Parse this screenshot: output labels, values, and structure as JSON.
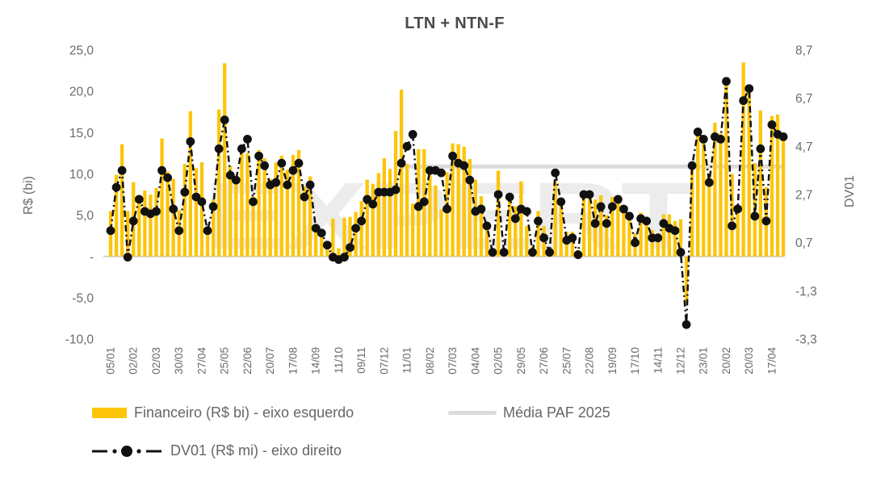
{
  "title": "LTN + NTN-F",
  "watermark": {
    "text": "EXPERT",
    "color": "#ECECEC"
  },
  "left_axis": {
    "label": "R$ (bi)",
    "ticks": [
      "25,0",
      "20,0",
      "15,0",
      "10,0",
      "5,0",
      "-",
      "-5,0",
      "-10,0"
    ],
    "tick_values": [
      25,
      20,
      15,
      10,
      5,
      0,
      -5,
      -10
    ]
  },
  "right_axis": {
    "label": "DV01",
    "ticks": [
      "8,7",
      "6,7",
      "4,7",
      "2,7",
      "0,7",
      "-1,3",
      "-3,3"
    ],
    "tick_values": [
      8.7,
      6.7,
      4.7,
      2.7,
      0.7,
      -1.3,
      -3.3
    ]
  },
  "legend": {
    "financeiro": "Financeiro (R$ bi) - eixo esquerdo",
    "media": "Média PAF 2025",
    "dv01": "DV01 (R$ mi) - eixo direito"
  },
  "chart_data": {
    "type": "bar",
    "grid": false,
    "left_ylim": [
      -10,
      25
    ],
    "right_ylim": [
      -3.3,
      8.7
    ],
    "x_tick_every": 4,
    "x_tick_labels": [
      "05/01",
      "02/02",
      "02/03",
      "30/03",
      "27/04",
      "25/05",
      "22/06",
      "20/07",
      "17/08",
      "14/09",
      "11/10",
      "09/11",
      "07/12",
      "11/01",
      "08/02",
      "07/03",
      "04/04",
      "02/05",
      "29/05",
      "27/06",
      "25/07",
      "22/08",
      "19/09",
      "17/10",
      "14/11",
      "12/12",
      "23/01",
      "20/02",
      "20/03",
      "17/04"
    ],
    "series": [
      {
        "name": "Financeiro (R$ bi) - eixo esquerdo",
        "type": "bar",
        "axis": "left",
        "color": "#FCC509",
        "values": [
          5.5,
          9.9,
          13.6,
          5.5,
          9.0,
          6.5,
          8.0,
          7.5,
          8.3,
          14.3,
          10.3,
          9.4,
          5.6,
          11.2,
          17.6,
          10.7,
          11.4,
          3.2,
          6.9,
          17.8,
          23.4,
          11.0,
          9.3,
          13.1,
          12.5,
          7.3,
          12.9,
          11.9,
          9.4,
          11.4,
          12.2,
          10.5,
          12.3,
          12.9,
          8.5,
          9.7,
          3.2,
          2.4,
          1.0,
          4.6,
          1.0,
          4.7,
          4.8,
          5.4,
          6.7,
          9.3,
          8.8,
          10.1,
          11.9,
          10.6,
          15.2,
          20.2,
          11.2,
          6.4,
          13.0,
          13.0,
          10.4,
          8.6,
          5.7,
          10.2,
          13.7,
          13.6,
          13.3,
          11.8,
          9.3,
          7.3,
          3.7,
          0.9,
          10.4,
          0.9,
          7.6,
          6.1,
          9.1,
          3.7,
          1.2,
          5.5,
          3.7,
          1.1,
          9.1,
          6.8,
          3.0,
          3.0,
          0.8,
          7.8,
          7.6,
          6.9,
          7.4,
          5.0,
          7.2,
          6.8,
          5.8,
          5.4,
          2.8,
          5.3,
          4.1,
          3.2,
          2.8,
          5.1,
          5.1,
          4.3,
          4.5,
          -5.8,
          11.0,
          15.5,
          14.4,
          10.0,
          16.2,
          14.9,
          21.7,
          10.0,
          5.8,
          23.5,
          20.3,
          11.3,
          17.7,
          8.4,
          17.0,
          17.2,
          14.9
        ]
      },
      {
        "name": "DV01 (R$ mi) - eixo direito",
        "type": "line",
        "axis": "right",
        "color": "#111111",
        "values": [
          1.2,
          3.0,
          3.7,
          0.1,
          1.6,
          2.5,
          2.0,
          1.9,
          2.0,
          3.7,
          3.4,
          2.1,
          1.2,
          2.8,
          4.9,
          2.6,
          2.4,
          1.2,
          2.2,
          4.6,
          5.8,
          3.5,
          3.3,
          4.6,
          5.0,
          2.4,
          4.3,
          3.9,
          3.1,
          3.2,
          4.0,
          3.1,
          3.7,
          4.0,
          2.6,
          3.1,
          1.3,
          1.1,
          0.6,
          0.1,
          0.0,
          0.1,
          0.5,
          1.3,
          1.6,
          2.5,
          2.3,
          2.8,
          2.8,
          2.8,
          2.9,
          4.0,
          4.7,
          5.2,
          2.2,
          2.4,
          3.7,
          3.7,
          3.6,
          2.1,
          4.3,
          4.0,
          3.9,
          3.3,
          2.0,
          2.1,
          1.4,
          0.3,
          2.7,
          0.3,
          2.6,
          1.7,
          2.1,
          2.0,
          0.3,
          1.6,
          0.9,
          0.3,
          3.6,
          2.4,
          0.8,
          0.9,
          0.2,
          2.7,
          2.7,
          1.5,
          2.2,
          1.5,
          2.2,
          2.5,
          2.1,
          1.8,
          0.7,
          1.7,
          1.6,
          0.9,
          0.9,
          1.5,
          1.3,
          1.2,
          0.3,
          -2.7,
          3.9,
          5.3,
          5.0,
          3.2,
          5.1,
          5.0,
          7.4,
          1.4,
          2.1,
          6.6,
          7.1,
          1.8,
          4.6,
          1.6,
          5.6,
          5.2,
          5.1
        ]
      },
      {
        "name": "Média PAF 2025",
        "type": "hline",
        "axis": "left",
        "color": "#DBDBDB",
        "value": 10.9,
        "start_index": 51
      }
    ]
  }
}
